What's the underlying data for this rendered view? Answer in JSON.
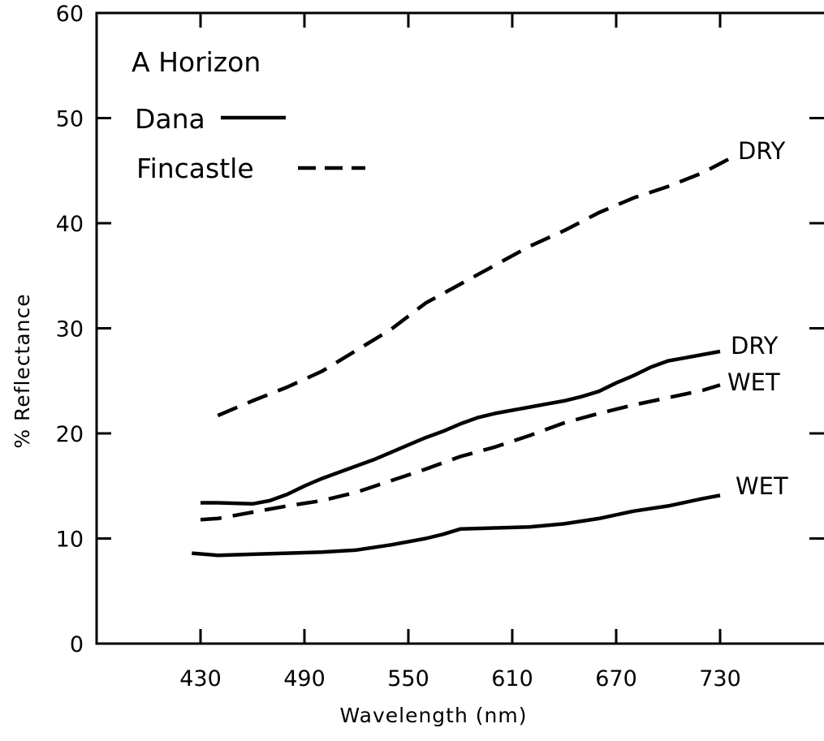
{
  "chart_data": {
    "type": "line",
    "title": "A Horizon",
    "xlabel": "Wavelength (nm)",
    "ylabel": "% Reflectance",
    "xlim": [
      370,
      790
    ],
    "ylim": [
      0,
      60
    ],
    "x_ticks": [
      430,
      490,
      550,
      610,
      670,
      730
    ],
    "y_ticks": [
      0,
      10,
      20,
      30,
      40,
      50,
      60
    ],
    "grid": false,
    "legend": {
      "placement": "top-left",
      "entries": [
        {
          "name": "Dana",
          "style": "solid"
        },
        {
          "name": "Fincastle",
          "style": "dashed"
        }
      ]
    },
    "series": [
      {
        "name": "Dana",
        "condition": "DRY",
        "style": "solid",
        "x": [
          430,
          440,
          460,
          470,
          480,
          490,
          500,
          510,
          520,
          530,
          540,
          550,
          560,
          570,
          580,
          590,
          600,
          610,
          620,
          630,
          640,
          650,
          660,
          670,
          680,
          690,
          700,
          710,
          720,
          730
        ],
        "y": [
          13.4,
          13.4,
          13.3,
          13.6,
          14.2,
          15.0,
          15.7,
          16.3,
          16.9,
          17.5,
          18.2,
          18.9,
          19.6,
          20.2,
          20.9,
          21.5,
          21.9,
          22.2,
          22.5,
          22.8,
          23.1,
          23.5,
          24.0,
          24.8,
          25.5,
          26.3,
          26.9,
          27.2,
          27.5,
          27.8
        ]
      },
      {
        "name": "Dana",
        "condition": "WET",
        "style": "solid",
        "x": [
          425,
          440,
          460,
          480,
          500,
          520,
          540,
          560,
          570,
          580,
          600,
          620,
          640,
          660,
          680,
          700,
          720,
          730
        ],
        "y": [
          8.6,
          8.4,
          8.5,
          8.6,
          8.7,
          8.9,
          9.4,
          10.0,
          10.4,
          10.9,
          11.0,
          11.1,
          11.4,
          11.9,
          12.6,
          13.1,
          13.8,
          14.1
        ]
      },
      {
        "name": "Fincastle",
        "condition": "DRY",
        "style": "dashed",
        "x": [
          440,
          460,
          480,
          500,
          520,
          540,
          560,
          580,
          600,
          620,
          640,
          660,
          680,
          700,
          720,
          735
        ],
        "y": [
          21.7,
          23.1,
          24.4,
          25.9,
          27.9,
          29.9,
          32.4,
          34.2,
          36.0,
          37.8,
          39.3,
          41.0,
          42.4,
          43.5,
          44.8,
          46.1
        ]
      },
      {
        "name": "Fincastle",
        "condition": "WET",
        "style": "dashed",
        "x": [
          430,
          440,
          460,
          480,
          500,
          520,
          540,
          560,
          580,
          600,
          620,
          640,
          660,
          680,
          700,
          720,
          730
        ],
        "y": [
          11.8,
          11.9,
          12.5,
          13.1,
          13.6,
          14.4,
          15.5,
          16.6,
          17.8,
          18.7,
          19.8,
          21.0,
          21.9,
          22.7,
          23.4,
          24.1,
          24.6
        ]
      }
    ],
    "annotations": [
      {
        "text": "DRY",
        "series": 2
      },
      {
        "text": "DRY",
        "series": 0
      },
      {
        "text": "WET",
        "series": 3
      },
      {
        "text": "WET",
        "series": 1
      }
    ]
  }
}
